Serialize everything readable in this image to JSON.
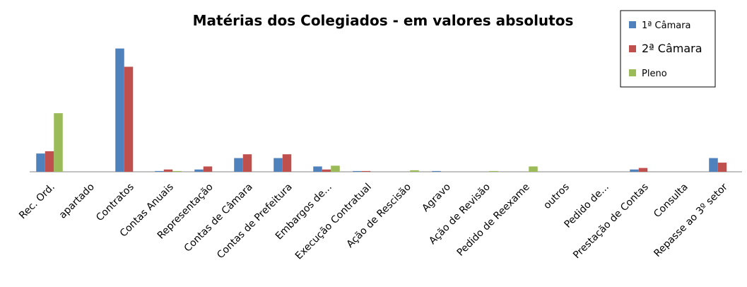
{
  "chart_data": {
    "type": "bar",
    "title": "Matérias dos Colegiados - em valores absolutos",
    "categories": [
      "Rec. Ord.",
      "apartado",
      "Contratos",
      "Contas Anuais",
      "Representação",
      "Contas de Câmara",
      "Contas de Prefeitura",
      "Embargos de...",
      "Execução Contratual",
      "Ação de Rescisão",
      "Agravo",
      "Ação de Revisão",
      "Pedido de Reexame",
      "outros",
      "Pedido de...",
      "Prestação de Contas",
      "Consulta",
      "Repasse ao 3º setor"
    ],
    "series": [
      {
        "name": "1ª Câmara",
        "color": "#4f81bd",
        "values": [
          24,
          0,
          162,
          1,
          3,
          18,
          18,
          7,
          1,
          0,
          1,
          0,
          0,
          0,
          0,
          3,
          0,
          18
        ]
      },
      {
        "name": "2ª Câmara",
        "color": "#c0504d",
        "values": [
          27,
          0,
          138,
          3,
          7,
          23,
          23,
          3,
          1,
          0,
          0,
          0,
          0,
          0,
          0,
          5,
          0,
          12
        ]
      },
      {
        "name": "Pleno",
        "color": "#9bbb59",
        "values": [
          77,
          0,
          0,
          1,
          0,
          0,
          0,
          8,
          0,
          2,
          0,
          1,
          7,
          0,
          0,
          0,
          0,
          0
        ]
      }
    ],
    "ylim": [
      0,
      170
    ],
    "legend": "top-right"
  }
}
